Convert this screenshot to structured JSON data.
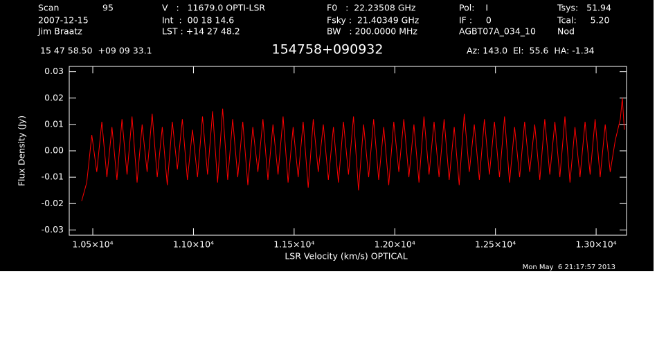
{
  "chart_data": {
    "type": "line",
    "title": "154758+090932",
    "header": [
      "Scan",
      "95",
      "2007-12-15",
      "Jim Braatz",
      "V   :   11679.0 OPTI-LSR",
      "Int  :  00 18 14.6",
      "LST : +14 27 48.2",
      "F0   :  22.23508 GHz",
      "Fsky :  21.40349 GHz",
      "BW   : 200.0000 MHz",
      "Pol:    I",
      "IF :     0",
      "AGBT07A_034_10",
      "Tsys:   51.94",
      "Tcal:     5.20",
      "Nod",
      "15 47 58.50  +09 09 33.1",
      "Az: 143.0  El:  55.6  HA: -1.34"
    ],
    "timestamp": "Mon May  6 21:17:57 2013",
    "x_label": "LSR Velocity (km/s) OPTICAL",
    "y_label": "Flux Density (Jy)",
    "x": [
      10445,
      10470,
      10495,
      10520,
      10545,
      10570,
      10595,
      10620,
      10645,
      10670,
      10695,
      10720,
      10745,
      10770,
      10795,
      10820,
      10845,
      10870,
      10895,
      10920,
      10945,
      10970,
      10995,
      11020,
      11045,
      11070,
      11095,
      11120,
      11145,
      11170,
      11195,
      11220,
      11245,
      11270,
      11295,
      11320,
      11345,
      11370,
      11395,
      11420,
      11445,
      11470,
      11495,
      11520,
      11545,
      11570,
      11595,
      11620,
      11645,
      11670,
      11695,
      11720,
      11745,
      11770,
      11795,
      11820,
      11845,
      11870,
      11895,
      11920,
      11945,
      11970,
      11995,
      12020,
      12045,
      12070,
      12095,
      12120,
      12145,
      12170,
      12195,
      12220,
      12245,
      12270,
      12295,
      12320,
      12345,
      12370,
      12395,
      12420,
      12445,
      12470,
      12495,
      12520,
      12545,
      12570,
      12595,
      12620,
      12645,
      12670,
      12695,
      12720,
      12745,
      12770,
      12795,
      12820,
      12845,
      12870,
      12895,
      12920,
      12945,
      12970,
      12995,
      13020,
      13045,
      13070,
      13095,
      13120,
      13130,
      13140
    ],
    "series": [
      {
        "color": "#ff0000",
        "values": [
          -0.019,
          -0.012,
          0.006,
          -0.008,
          0.011,
          -0.01,
          0.009,
          -0.011,
          0.012,
          -0.009,
          0.013,
          -0.012,
          0.01,
          -0.008,
          0.014,
          -0.01,
          0.009,
          -0.013,
          0.011,
          -0.007,
          0.012,
          -0.011,
          0.008,
          -0.01,
          0.013,
          -0.009,
          0.015,
          -0.012,
          0.016,
          -0.011,
          0.012,
          -0.01,
          0.011,
          -0.013,
          0.009,
          -0.008,
          0.012,
          -0.011,
          0.01,
          -0.009,
          0.013,
          -0.012,
          0.009,
          -0.01,
          0.011,
          -0.014,
          0.012,
          -0.008,
          0.01,
          -0.011,
          0.009,
          -0.012,
          0.011,
          -0.009,
          0.013,
          -0.015,
          0.01,
          -0.01,
          0.012,
          -0.011,
          0.009,
          -0.013,
          0.011,
          -0.008,
          0.012,
          -0.01,
          0.01,
          -0.012,
          0.013,
          -0.009,
          0.011,
          -0.01,
          0.012,
          -0.011,
          0.009,
          -0.013,
          0.014,
          -0.008,
          0.01,
          -0.011,
          0.012,
          -0.009,
          0.011,
          -0.01,
          0.013,
          -0.012,
          0.009,
          -0.01,
          0.011,
          -0.008,
          0.01,
          -0.011,
          0.012,
          -0.009,
          0.011,
          -0.01,
          0.013,
          -0.012,
          0.009,
          -0.01,
          0.011,
          -0.009,
          0.012,
          -0.01,
          0.01,
          -0.008,
          0.004,
          0.012,
          0.02,
          0.008
        ]
      }
    ],
    "xlim": [
      10383,
      13151
    ],
    "ylim": [
      -0.032,
      0.032
    ],
    "xticks": [
      {
        "value": 10500,
        "label": "1.05×10⁴"
      },
      {
        "value": 11000,
        "label": "1.10×10⁴"
      },
      {
        "value": 11500,
        "label": "1.15×10⁴"
      },
      {
        "value": 12000,
        "label": "1.20×10⁴"
      },
      {
        "value": 12500,
        "label": "1.25×10⁴"
      },
      {
        "value": 13000,
        "label": "1.30×10⁴"
      }
    ],
    "yticks": [
      {
        "value": -0.03,
        "label": "-0.03"
      },
      {
        "value": -0.02,
        "label": "-0.02"
      },
      {
        "value": -0.01,
        "label": "-0.01"
      },
      {
        "value": 0,
        "label": "0.00"
      },
      {
        "value": 0.01,
        "label": "0.01"
      },
      {
        "value": 0.02,
        "label": "0.02"
      },
      {
        "value": 0.03,
        "label": "0.03"
      }
    ]
  }
}
